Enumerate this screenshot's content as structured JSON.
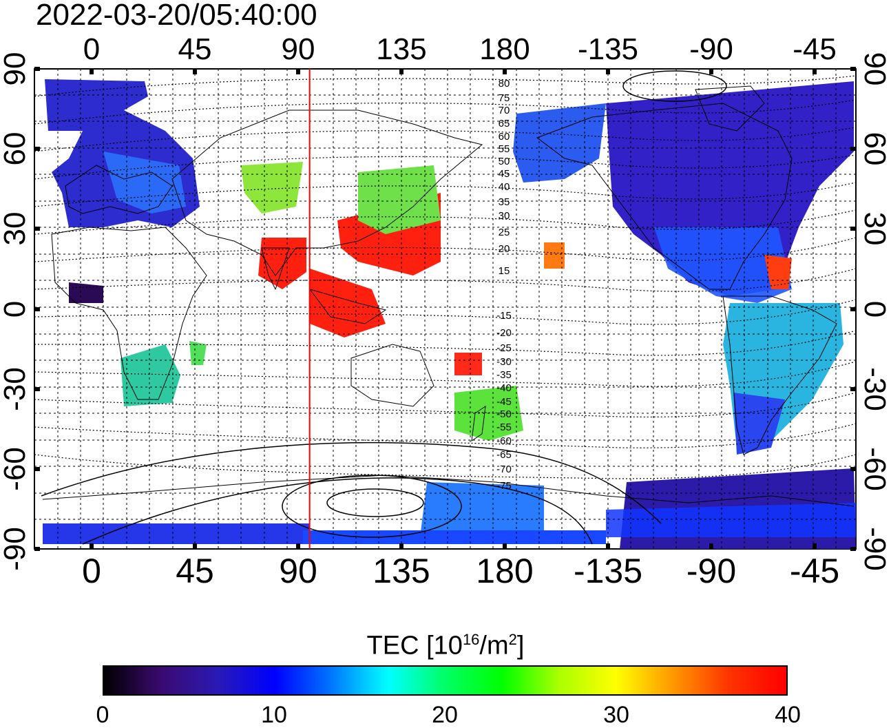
{
  "title": "2022-03-20/05:40:00",
  "map": {
    "lon_ticks_top": [
      "0",
      "45",
      "90",
      "135",
      "180",
      "-135",
      "-90",
      "-45"
    ],
    "lon_ticks_bottom": [
      "0",
      "45",
      "90",
      "135",
      "180",
      "-135",
      "-90",
      "-45"
    ],
    "lat_ticks_left": [
      "90",
      "60",
      "30",
      "0",
      "-30",
      "-60",
      "-90"
    ],
    "lat_ticks_right": [
      "90",
      "60",
      "30",
      "0",
      "-30",
      "-60",
      "-90"
    ],
    "magnetic_lat_labels_north": [
      "80",
      "75",
      "70",
      "65",
      "60",
      "55",
      "50",
      "45",
      "40",
      "35",
      "30",
      "25",
      "20",
      "15"
    ],
    "magnetic_lat_labels_south": [
      "-15",
      "-20",
      "-25",
      "-30",
      "-35",
      "-40",
      "-45",
      "-50",
      "-55",
      "-60",
      "-65",
      "-70",
      "-75"
    ],
    "terminator_longitude": 95,
    "terminator_color": "#ff0000"
  },
  "colorbar": {
    "title_main": "TEC  [10",
    "title_sup1": "16",
    "title_mid": "/m",
    "title_sup2": "2",
    "title_end": "]",
    "min": 0,
    "max": 40,
    "tick_labels": [
      "0",
      "10",
      "20",
      "30",
      "40"
    ],
    "colors": [
      "#000000",
      "#3a0a6e",
      "#2a1ab5",
      "#0000ff",
      "#0077ff",
      "#00ffff",
      "#00ff66",
      "#00ff00",
      "#aaff00",
      "#ffff00",
      "#ff9900",
      "#ff3300",
      "#ff0000"
    ]
  }
}
